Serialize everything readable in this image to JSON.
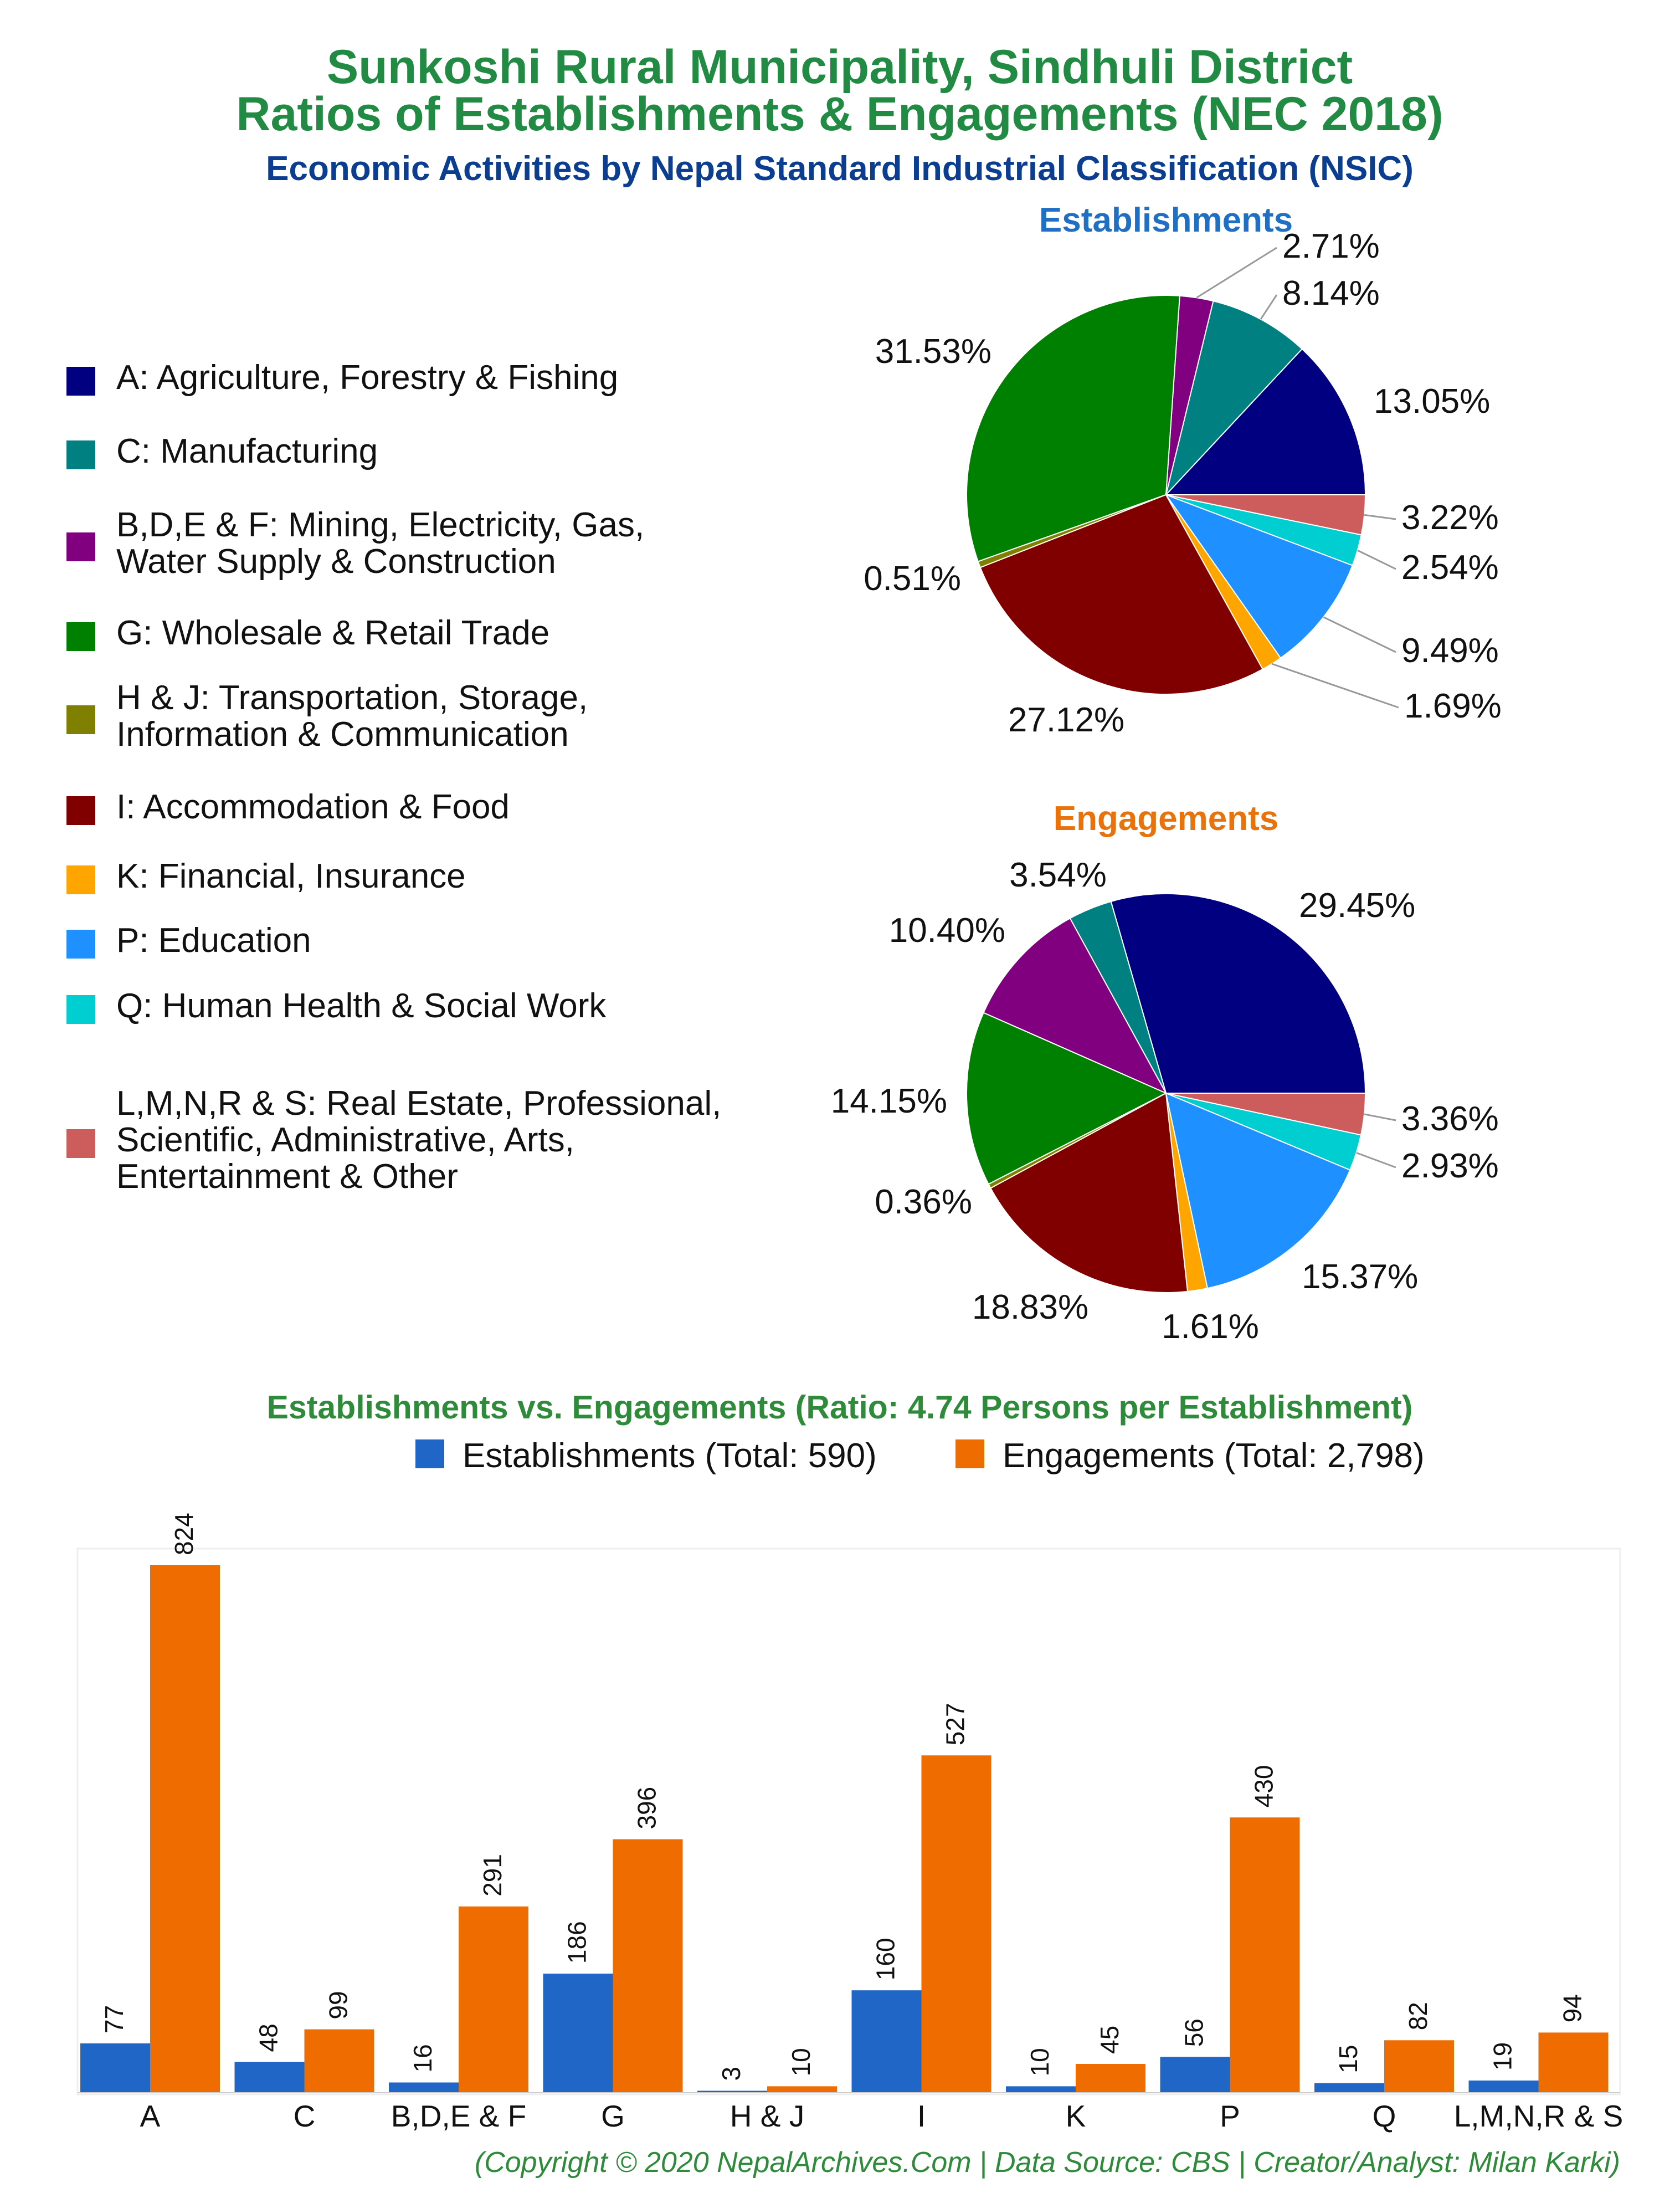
{
  "title_line1": "Sunkoshi Rural Municipality, Sindhuli District",
  "title_line2": "Ratios of Establishments & Engagements (NEC 2018)",
  "subtitle": "Economic Activities by Nepal Standard Industrial Classification (NSIC)",
  "legend": [
    {
      "lines": [
        "A: Agriculture, Forestry & Fishing"
      ],
      "color": "#000080"
    },
    {
      "lines": [
        "C: Manufacturing"
      ],
      "color": "#008080"
    },
    {
      "lines": [
        "B,D,E & F: Mining, Electricity, Gas,",
        "Water Supply & Construction"
      ],
      "color": "#800080"
    },
    {
      "lines": [
        "G: Wholesale & Retail Trade"
      ],
      "color": "#008000"
    },
    {
      "lines": [
        "H & J: Transportation, Storage,",
        "Information & Communication"
      ],
      "color": "#808000"
    },
    {
      "lines": [
        "I: Accommodation & Food"
      ],
      "color": "#800000"
    },
    {
      "lines": [
        "K: Financial, Insurance"
      ],
      "color": "#ffa500"
    },
    {
      "lines": [
        "P: Education"
      ],
      "color": "#1e90ff"
    },
    {
      "lines": [
        "Q: Human Health & Social Work"
      ],
      "color": "#00ced1"
    },
    {
      "lines": [
        "L,M,N,R & S: Real Estate, Professional,",
        "Scientific, Administrative, Arts,",
        "Entertainment & Other"
      ],
      "color": "#cd5c5c"
    }
  ],
  "chart_data": [
    {
      "type": "pie",
      "title": "Establishments",
      "labels": [
        "A",
        "C",
        "B,D,E & F",
        "G",
        "H & J",
        "I",
        "K",
        "P",
        "Q",
        "L,M,N,R & S"
      ],
      "values": [
        13.05,
        8.14,
        2.71,
        31.53,
        0.51,
        27.12,
        1.69,
        9.49,
        2.54,
        3.22
      ],
      "display": [
        "13.05%",
        "8.14%",
        "2.71%",
        "31.53%",
        "0.51%",
        "27.12%",
        "1.69%",
        "9.49%",
        "2.54%",
        "3.22%"
      ],
      "colors": [
        "#000080",
        "#008080",
        "#800080",
        "#008000",
        "#808000",
        "#800000",
        "#ffa500",
        "#1e90ff",
        "#00ced1",
        "#cd5c5c"
      ]
    },
    {
      "type": "pie",
      "title": "Engagements",
      "labels": [
        "A",
        "C",
        "B,D,E & F",
        "G",
        "H & J",
        "I",
        "K",
        "P",
        "Q",
        "L,M,N,R & S"
      ],
      "values": [
        29.45,
        3.54,
        10.4,
        14.15,
        0.36,
        18.83,
        1.61,
        15.37,
        2.93,
        3.36
      ],
      "display": [
        "29.45%",
        "3.54%",
        "10.40%",
        "14.15%",
        "0.36%",
        "18.83%",
        "1.61%",
        "15.37%",
        "2.93%",
        "3.36%"
      ],
      "colors": [
        "#000080",
        "#008080",
        "#800080",
        "#008000",
        "#808000",
        "#800000",
        "#ffa500",
        "#1e90ff",
        "#00ced1",
        "#cd5c5c"
      ]
    },
    {
      "type": "bar",
      "title": "Establishments vs. Engagements (Ratio: 4.74 Persons per Establishment)",
      "categories": [
        "A",
        "C",
        "B,D,E & F",
        "G",
        "H & J",
        "I",
        "K",
        "P",
        "Q",
        "L,M,N,R & S"
      ],
      "series": [
        {
          "name": "Establishments (Total: 590)",
          "color": "#1f66c6",
          "values": [
            77,
            48,
            16,
            186,
            3,
            160,
            10,
            56,
            15,
            19
          ]
        },
        {
          "name": "Engagements (Total: 2,798)",
          "color": "#ef6c00",
          "values": [
            824,
            99,
            291,
            396,
            10,
            527,
            45,
            430,
            82,
            94
          ]
        }
      ],
      "ylim": [
        0,
        850
      ]
    }
  ],
  "footer": "(Copyright © 2020 NepalArchives.Com | Data Source: CBS | Creator/Analyst: Milan Karki)"
}
